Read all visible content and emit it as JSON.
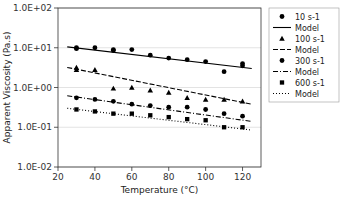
{
  "chart_data": {
    "type": "line",
    "xlabel": "Temperature (°C)",
    "ylabel": "Apparent Viscosity (Pa.s)",
    "xlim": [
      20,
      130
    ],
    "ylim": [
      0.01,
      100
    ],
    "xticks": [
      20,
      40,
      60,
      80,
      100,
      120
    ],
    "yticks": [
      {
        "value": 0.01,
        "label": "1.0E-02"
      },
      {
        "value": 0.1,
        "label": "1.0E-01"
      },
      {
        "value": 1,
        "label": "1.0E+00"
      },
      {
        "value": 10,
        "label": "1.0E+01"
      },
      {
        "value": 100,
        "label": "1.0E+02"
      }
    ],
    "log": "y",
    "grid": "y",
    "legend": "right",
    "series": [
      {
        "name": "10 s-1",
        "type": "scatter",
        "marker": "circle",
        "color": "#000000",
        "x": [
          30,
          30,
          40,
          50,
          50,
          60,
          70,
          80,
          90,
          100,
          110,
          120,
          120
        ],
        "values": [
          9.5,
          10.0,
          10.0,
          8.5,
          9.0,
          9.0,
          6.5,
          5.5,
          5.0,
          4.5,
          2.5,
          3.5,
          4.0
        ]
      },
      {
        "name": "Model",
        "type": "line",
        "line_style": "solid",
        "color": "#000000",
        "x": [
          25,
          125
        ],
        "values": [
          10.5,
          3.0
        ]
      },
      {
        "name": "100 s-1",
        "type": "scatter",
        "marker": "triangle",
        "color": "#000000",
        "x": [
          30,
          30,
          40,
          50,
          60,
          70,
          80,
          90,
          100,
          110,
          120
        ],
        "values": [
          2.8,
          3.2,
          2.8,
          0.95,
          1.0,
          0.85,
          0.75,
          0.55,
          0.5,
          0.5,
          0.45
        ]
      },
      {
        "name": "Model",
        "type": "line",
        "line_style": "dashed",
        "color": "#000000",
        "x": [
          25,
          125
        ],
        "values": [
          3.2,
          0.38
        ]
      },
      {
        "name": "300 s-1",
        "type": "scatter",
        "marker": "circle",
        "color": "#000000",
        "x": [
          30,
          40,
          50,
          60,
          70,
          80,
          90,
          100,
          110,
          120
        ],
        "values": [
          0.55,
          0.5,
          0.45,
          0.38,
          0.35,
          0.32,
          0.32,
          0.28,
          0.22,
          0.19
        ]
      },
      {
        "name": "Model",
        "type": "line",
        "line_style": "dashdot",
        "color": "#000000",
        "x": [
          25,
          125
        ],
        "values": [
          0.62,
          0.14
        ]
      },
      {
        "name": "600 s-1",
        "type": "scatter",
        "marker": "square",
        "color": "#000000",
        "x": [
          30,
          40,
          50,
          60,
          70,
          80,
          90,
          100,
          110,
          120
        ],
        "values": [
          0.28,
          0.25,
          0.22,
          0.22,
          0.2,
          0.18,
          0.16,
          0.15,
          0.1,
          0.1
        ]
      },
      {
        "name": "Model",
        "type": "line",
        "line_style": "dotted",
        "color": "#000000",
        "x": [
          25,
          125
        ],
        "values": [
          0.3,
          0.085
        ]
      }
    ]
  }
}
